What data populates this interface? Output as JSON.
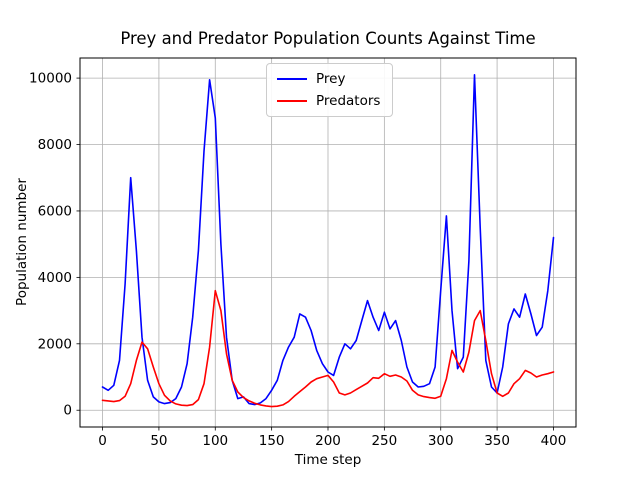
{
  "chart_data": {
    "type": "line",
    "title": "Prey and Predator Population Counts Against Time",
    "xlabel": "Time step",
    "ylabel": "Population number",
    "grid": true,
    "xlim": [
      -20,
      420
    ],
    "ylim": [
      -505,
      10605
    ],
    "x_ticks": [
      0,
      50,
      100,
      150,
      200,
      250,
      300,
      350,
      400
    ],
    "y_ticks": [
      0,
      2000,
      4000,
      6000,
      8000,
      10000
    ],
    "legend": {
      "position": "upper center",
      "entries": [
        {
          "label": "Prey",
          "color": "#0000ff"
        },
        {
          "label": "Predators",
          "color": "#ff0000"
        }
      ]
    },
    "colors": {
      "grid": "#b0b0b0",
      "axis": "#000000",
      "background": "#ffffff"
    },
    "x": [
      0,
      5,
      10,
      15,
      20,
      25,
      30,
      35,
      40,
      45,
      50,
      55,
      60,
      65,
      70,
      75,
      80,
      85,
      90,
      95,
      100,
      105,
      110,
      115,
      120,
      125,
      130,
      135,
      140,
      145,
      150,
      155,
      160,
      165,
      170,
      175,
      180,
      185,
      190,
      195,
      200,
      205,
      210,
      215,
      220,
      225,
      230,
      235,
      240,
      245,
      250,
      255,
      260,
      265,
      270,
      275,
      280,
      285,
      290,
      295,
      300,
      305,
      310,
      315,
      320,
      325,
      330,
      335,
      340,
      345,
      350,
      355,
      360,
      365,
      370,
      375,
      380,
      385,
      390,
      395,
      400
    ],
    "series": [
      {
        "name": "Prey",
        "color": "#0000ff",
        "values": [
          700,
          600,
          750,
          1500,
          3800,
          7000,
          4800,
          2200,
          900,
          400,
          250,
          200,
          230,
          350,
          700,
          1400,
          2800,
          4800,
          7800,
          9950,
          8800,
          5000,
          2200,
          900,
          350,
          400,
          200,
          170,
          220,
          350,
          600,
          900,
          1500,
          1900,
          2200,
          2900,
          2800,
          2400,
          1800,
          1400,
          1150,
          1050,
          1600,
          2000,
          1850,
          2100,
          2700,
          3300,
          2800,
          2400,
          2950,
          2450,
          2700,
          2100,
          1300,
          850,
          700,
          720,
          800,
          1300,
          3600,
          5850,
          3000,
          1250,
          1600,
          4500,
          10100,
          5500,
          1500,
          700,
          520,
          1300,
          2600,
          3050,
          2800,
          3500,
          2900,
          2250,
          2500,
          3600,
          5200
        ]
      },
      {
        "name": "Predators",
        "color": "#ff0000",
        "values": [
          300,
          280,
          260,
          290,
          420,
          800,
          1500,
          2050,
          1850,
          1300,
          800,
          450,
          280,
          190,
          150,
          140,
          170,
          320,
          800,
          1900,
          3600,
          3000,
          1700,
          900,
          550,
          380,
          280,
          210,
          160,
          130,
          110,
          120,
          160,
          260,
          420,
          560,
          700,
          850,
          950,
          1000,
          1050,
          850,
          520,
          460,
          520,
          620,
          720,
          820,
          980,
          960,
          1100,
          1020,
          1060,
          1000,
          880,
          600,
          460,
          410,
          380,
          360,
          420,
          950,
          1800,
          1450,
          1150,
          1750,
          2700,
          3000,
          2100,
          1100,
          520,
          420,
          520,
          800,
          950,
          1200,
          1120,
          1000,
          1060,
          1100,
          1150
        ]
      }
    ]
  }
}
